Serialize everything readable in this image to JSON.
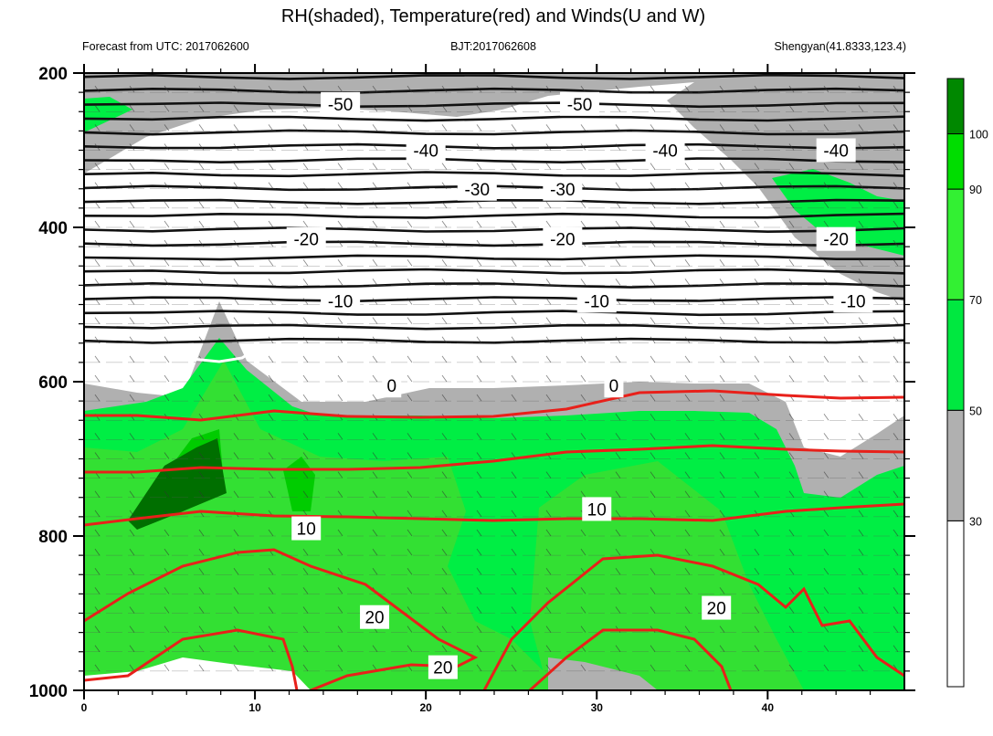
{
  "chart_data": {
    "type": "contour",
    "title": "RH(shaded), Temperature(red) and Winds(U and W)",
    "subtitle_left": "Forecast from UTC: 2017062600",
    "subtitle_center": "BJT:2017062608",
    "subtitle_right": "Shengyan(41.8333,123.4)",
    "xlim": [
      0,
      48
    ],
    "ylim": [
      1000,
      200
    ],
    "x_ticks": [
      "0",
      "10",
      "20",
      "30",
      "40"
    ],
    "x_tick_values": [
      0,
      10,
      20,
      30,
      40
    ],
    "y_ticks": [
      "200",
      "400",
      "600",
      "800",
      "1000"
    ],
    "y_tick_values": [
      200,
      400,
      600,
      800,
      1000
    ],
    "colorbar": {
      "tick_labels": [
        "30",
        "50",
        "70",
        "90",
        "100"
      ],
      "tick_values": [
        30,
        50,
        70,
        90,
        100
      ],
      "colors": [
        "#ffffff",
        "#b0b0b0",
        "#00e840",
        "#33f033",
        "#00dd00",
        "#008800"
      ],
      "bands": [
        [
          0,
          30
        ],
        [
          30,
          50
        ],
        [
          50,
          70
        ],
        [
          70,
          90
        ],
        [
          90,
          100
        ],
        [
          100,
          110
        ]
      ]
    },
    "rh_colors": {
      "below_30": "#ffffff",
      "30_50": "#b0b0b0",
      "50_70": "#00ee44",
      "70_90": "#33e033",
      "90_100": "#00cc00",
      "above_100": "#006f00"
    },
    "temperature_lines_black": [
      {
        "level": -50,
        "p": 240,
        "labels": [
          {
            "x": 15,
            "text": "-50"
          },
          {
            "x": 29,
            "text": "-50"
          }
        ]
      },
      {
        "level": -40,
        "p": 300,
        "labels": [
          {
            "x": 20,
            "text": "-40"
          },
          {
            "x": 34,
            "text": "-40"
          },
          {
            "x": 44,
            "text": "-40"
          }
        ]
      },
      {
        "level": -30,
        "p": 350,
        "labels": [
          {
            "x": 23,
            "text": "-30"
          },
          {
            "x": 28,
            "text": "-30"
          }
        ]
      },
      {
        "level": -20,
        "p": 415,
        "labels": [
          {
            "x": 13,
            "text": "-20"
          },
          {
            "x": 28,
            "text": "-20"
          },
          {
            "x": 44,
            "text": "-20"
          }
        ]
      },
      {
        "level": -10,
        "p": 495,
        "labels": [
          {
            "x": 15,
            "text": "-10"
          },
          {
            "x": 30,
            "text": "-10"
          },
          {
            "x": 45,
            "text": "-10"
          }
        ]
      },
      {
        "level": 0,
        "p": 605,
        "labels": [
          {
            "x": 18,
            "text": "0"
          },
          {
            "x": 31,
            "text": "0"
          }
        ]
      }
    ],
    "temperature_lines_red": [
      {
        "level": 10,
        "labels": [
          {
            "x": 13,
            "text": "10"
          },
          {
            "x": 30,
            "text": "10"
          }
        ]
      },
      {
        "level": 20,
        "labels": [
          {
            "x": 17,
            "text": "20"
          },
          {
            "x": 21,
            "text": "20"
          },
          {
            "x": 37,
            "text": "20"
          }
        ]
      }
    ],
    "grid": false,
    "legend": "colorbar-right"
  }
}
